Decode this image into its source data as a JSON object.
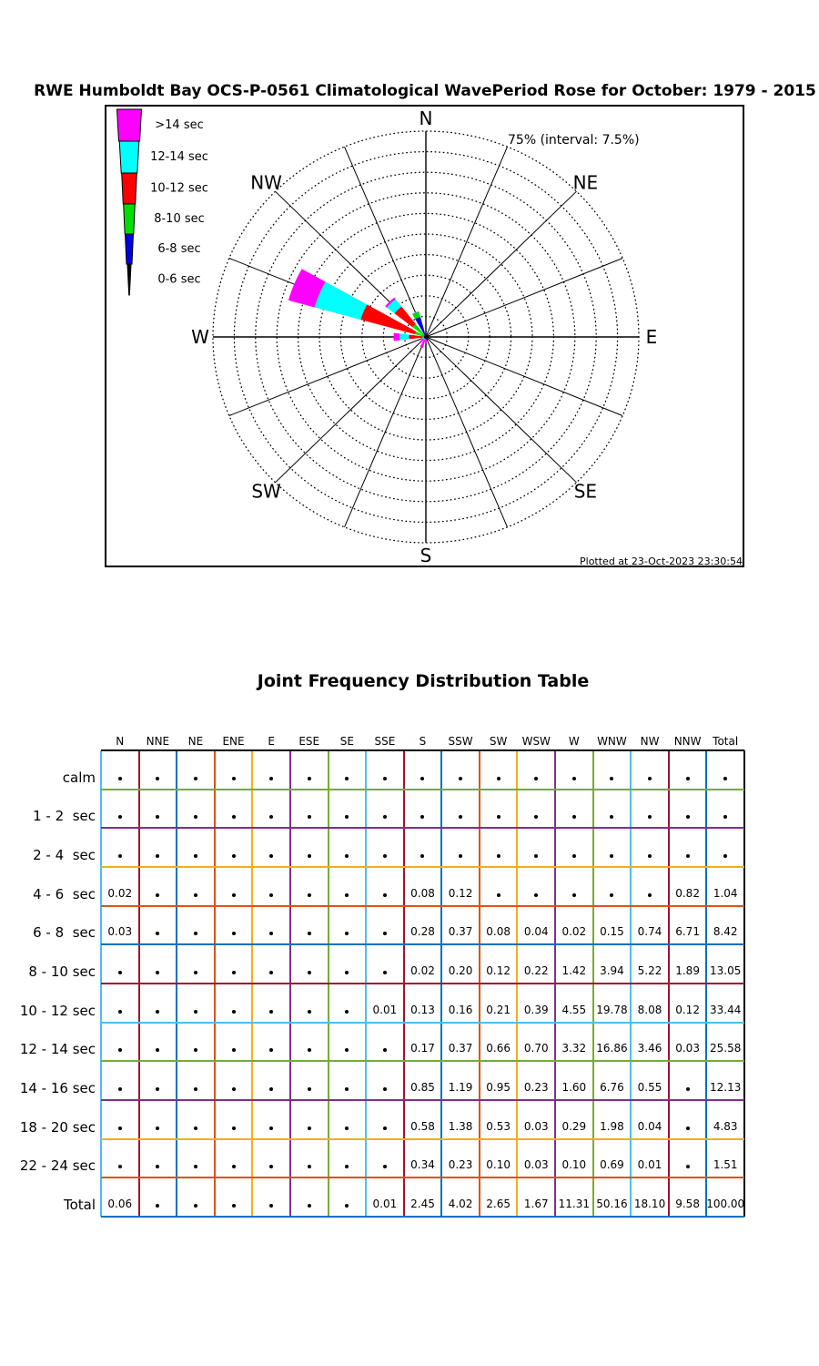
{
  "page_title": "RWE Humboldt Bay OCS-P-0561 Climatological WavePeriod Rose for October: 1979 - 2015",
  "rose": {
    "annotation": "75% (interval: 7.5%)",
    "plotted_at": "Plotted at 23-Oct-2023 23:30:54",
    "compass_labels": [
      "N",
      "NE",
      "E",
      "SE",
      "S",
      "SW",
      "W",
      "NW"
    ],
    "legend": [
      {
        "label": ">14 sec",
        "color": "#FF00FF"
      },
      {
        "label": "12-14 sec",
        "color": "#00FFFF"
      },
      {
        "label": "10-12 sec",
        "color": "#FF0000"
      },
      {
        "label": "8-10 sec",
        "color": "#00DF00"
      },
      {
        "label": "6-8 sec",
        "color": "#0000E6"
      },
      {
        "label": "0-6 sec",
        "color": "#000000"
      }
    ]
  },
  "chart_data": [
    {
      "type": "rose",
      "title": "RWE Humboldt Bay OCS-P-0561 Climatological WavePeriod Rose for October: 1979 - 2015",
      "units": "percent frequency of occurrence",
      "ring_max_pct": 75,
      "ring_interval_pct": 7.5,
      "annotation": "75% (interval: 7.5%)",
      "directions": [
        "N",
        "NNE",
        "NE",
        "ENE",
        "E",
        "ESE",
        "SE",
        "SSE",
        "S",
        "SSW",
        "SW",
        "WSW",
        "W",
        "WNW",
        "NW",
        "NNW"
      ],
      "series": [
        {
          "name": "0-6 sec",
          "color": "#000000",
          "values": [
            0.02,
            0,
            0,
            0,
            0,
            0,
            0,
            0,
            0.08,
            0.12,
            0,
            0,
            0,
            0,
            0,
            0.82
          ]
        },
        {
          "name": "6-8 sec",
          "color": "#0000E6",
          "values": [
            0.03,
            0,
            0,
            0,
            0,
            0,
            0,
            0,
            0.28,
            0.37,
            0.08,
            0.04,
            0.02,
            0.15,
            0.74,
            6.71
          ]
        },
        {
          "name": "8-10 sec",
          "color": "#00DF00",
          "values": [
            0,
            0,
            0,
            0,
            0,
            0,
            0,
            0,
            0.02,
            0.2,
            0.12,
            0.22,
            1.42,
            3.94,
            5.22,
            1.89
          ]
        },
        {
          "name": "10-12 sec",
          "color": "#FF0000",
          "values": [
            0,
            0,
            0,
            0,
            0,
            0,
            0,
            0.01,
            0.13,
            0.16,
            0.21,
            0.39,
            4.55,
            19.78,
            8.08,
            0.12
          ]
        },
        {
          "name": "12-14 sec",
          "color": "#00FFFF",
          "values": [
            0,
            0,
            0,
            0,
            0,
            0,
            0,
            0,
            0.17,
            0.37,
            0.66,
            0.7,
            3.32,
            16.86,
            3.46,
            0.03
          ]
        },
        {
          "name": ">14 sec",
          "color": "#FF00FF",
          "values": [
            0,
            0,
            0,
            0,
            0,
            0,
            0,
            0,
            1.77,
            2.8,
            1.58,
            0.29,
            1.99,
            9.43,
            0.6,
            0
          ]
        }
      ]
    },
    {
      "type": "table",
      "title": "Joint Frequency Distribution Table",
      "columns": [
        "N",
        "NNE",
        "NE",
        "ENE",
        "E",
        "ESE",
        "SE",
        "SSE",
        "S",
        "SSW",
        "SW",
        "WSW",
        "W",
        "WNW",
        "NW",
        "NNW",
        "Total"
      ],
      "row_labels": [
        "calm",
        "1 - 2  sec",
        "2 - 4  sec",
        "4 - 6  sec",
        "6 - 8  sec",
        "8 - 10 sec",
        "10 - 12 sec",
        "12 - 14 sec",
        "14 - 16 sec",
        "18 - 20 sec",
        "22 - 24 sec",
        "Total"
      ],
      "cells": [
        [
          "•",
          "•",
          "•",
          "•",
          "•",
          "•",
          "•",
          "•",
          "•",
          "•",
          "•",
          "•",
          "•",
          "•",
          "•",
          "•",
          "•"
        ],
        [
          "•",
          "•",
          "•",
          "•",
          "•",
          "•",
          "•",
          "•",
          "•",
          "•",
          "•",
          "•",
          "•",
          "•",
          "•",
          "•",
          "•"
        ],
        [
          "•",
          "•",
          "•",
          "•",
          "•",
          "•",
          "•",
          "•",
          "•",
          "•",
          "•",
          "•",
          "•",
          "•",
          "•",
          "•",
          "•"
        ],
        [
          "0.02",
          "•",
          "•",
          "•",
          "•",
          "•",
          "•",
          "•",
          "0.08",
          "0.12",
          "•",
          "•",
          "•",
          "•",
          "•",
          "0.82",
          "1.04"
        ],
        [
          "0.03",
          "•",
          "•",
          "•",
          "•",
          "•",
          "•",
          "•",
          "0.28",
          "0.37",
          "0.08",
          "0.04",
          "0.02",
          "0.15",
          "0.74",
          "6.71",
          "8.42"
        ],
        [
          "•",
          "•",
          "•",
          "•",
          "•",
          "•",
          "•",
          "•",
          "0.02",
          "0.20",
          "0.12",
          "0.22",
          "1.42",
          "3.94",
          "5.22",
          "1.89",
          "13.05"
        ],
        [
          "•",
          "•",
          "•",
          "•",
          "•",
          "•",
          "•",
          "0.01",
          "0.13",
          "0.16",
          "0.21",
          "0.39",
          "4.55",
          "19.78",
          "8.08",
          "0.12",
          "33.44"
        ],
        [
          "•",
          "•",
          "•",
          "•",
          "•",
          "•",
          "•",
          "•",
          "0.17",
          "0.37",
          "0.66",
          "0.70",
          "3.32",
          "16.86",
          "3.46",
          "0.03",
          "25.58"
        ],
        [
          "•",
          "•",
          "•",
          "•",
          "•",
          "•",
          "•",
          "•",
          "0.85",
          "1.19",
          "0.95",
          "0.23",
          "1.60",
          "6.76",
          "0.55",
          "•",
          "12.13"
        ],
        [
          "•",
          "•",
          "•",
          "•",
          "•",
          "•",
          "•",
          "•",
          "0.58",
          "1.38",
          "0.53",
          "0.03",
          "0.29",
          "1.98",
          "0.04",
          "•",
          "4.83"
        ],
        [
          "•",
          "•",
          "•",
          "•",
          "•",
          "•",
          "•",
          "•",
          "0.34",
          "0.23",
          "0.10",
          "0.03",
          "0.10",
          "0.69",
          "0.01",
          "•",
          "1.51"
        ],
        [
          "0.06",
          "•",
          "•",
          "•",
          "•",
          "•",
          "•",
          "0.01",
          "2.45",
          "4.02",
          "2.65",
          "1.67",
          "11.31",
          "50.16",
          "18.10",
          "9.58",
          "100.00"
        ]
      ]
    }
  ],
  "grid_colors": {
    "vertical": [
      "#4DBEEE",
      "#A2142F",
      "#0072BD",
      "#D95319",
      "#EDB120",
      "#7E2F8E",
      "#77AC30",
      "#4DBEEE",
      "#A2142F",
      "#0072BD",
      "#D95319",
      "#EDB120",
      "#7E2F8E",
      "#77AC30",
      "#4DBEEE",
      "#A2142F",
      "#0072BD",
      "#000000"
    ],
    "horizontal": [
      "#000000",
      "#77AC30",
      "#7E2F8E",
      "#EDB120",
      "#D95319",
      "#0072BD",
      "#A2142F",
      "#4DBEEE",
      "#77AC30",
      "#7E2F8E",
      "#EDB120",
      "#D95319",
      "#0072BD"
    ]
  }
}
